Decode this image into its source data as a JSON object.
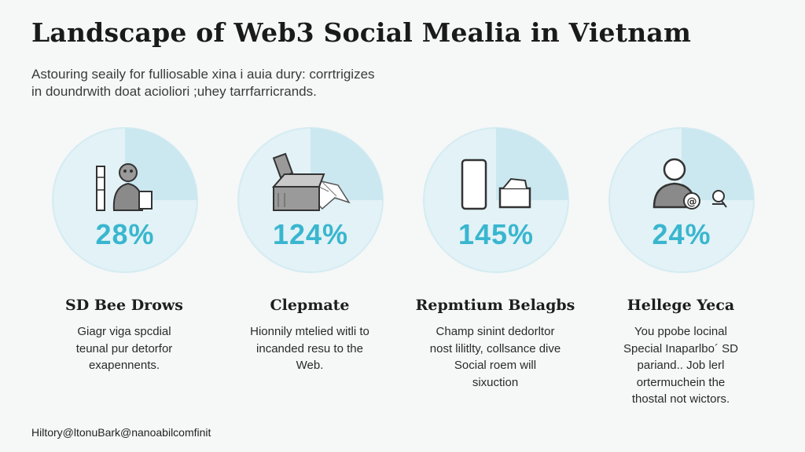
{
  "header": {
    "title": "Landscape of Web3 Social Mealia in Vietnam",
    "subtitle_lines": [
      "Astouring seaily for fulliosable xina i auia dury: corrtrigizes",
      "in doundrwith doat acioliori ;uhey tarrfarricrands."
    ]
  },
  "cards": [
    {
      "percent": "28%",
      "value": 28,
      "icon": "person-with-device-icon",
      "title": "SD Bee Drows",
      "desc": [
        "Giagr viga spcdial",
        "teunal pur detorfor",
        "exapennents."
      ]
    },
    {
      "percent": "124%",
      "value": 124,
      "icon": "box-and-map-icon",
      "title": "Clepmate",
      "desc": [
        "Hionnily mtelied witli to",
        "incanded resu to the",
        "Web."
      ]
    },
    {
      "percent": "145%",
      "value": 145,
      "icon": "phone-and-laptop-icon",
      "title": "Repmtium Belagbs",
      "desc": [
        "Champ sinint dedorltor",
        "nost lilitlty, collsance dive",
        "Social roem will",
        "sixuction"
      ]
    },
    {
      "percent": "24%",
      "value": 24,
      "icon": "person-with-at-sign-icon",
      "title": "Hellege Yeca",
      "desc": [
        "You ppobe locinal",
        "Special Inaparlbo´ SD",
        "pariand.. Job lerl",
        "ortermuchein the",
        "thostal not wictors."
      ]
    }
  ],
  "footer": {
    "text": "Hiltory@ltonuBark@nanoabilcomfinit"
  },
  "colors": {
    "accent": "#39b6cf",
    "circle_fill": "#dff1f6",
    "circle_shade": "#c8e8f0",
    "background": "#f6f7f7"
  }
}
